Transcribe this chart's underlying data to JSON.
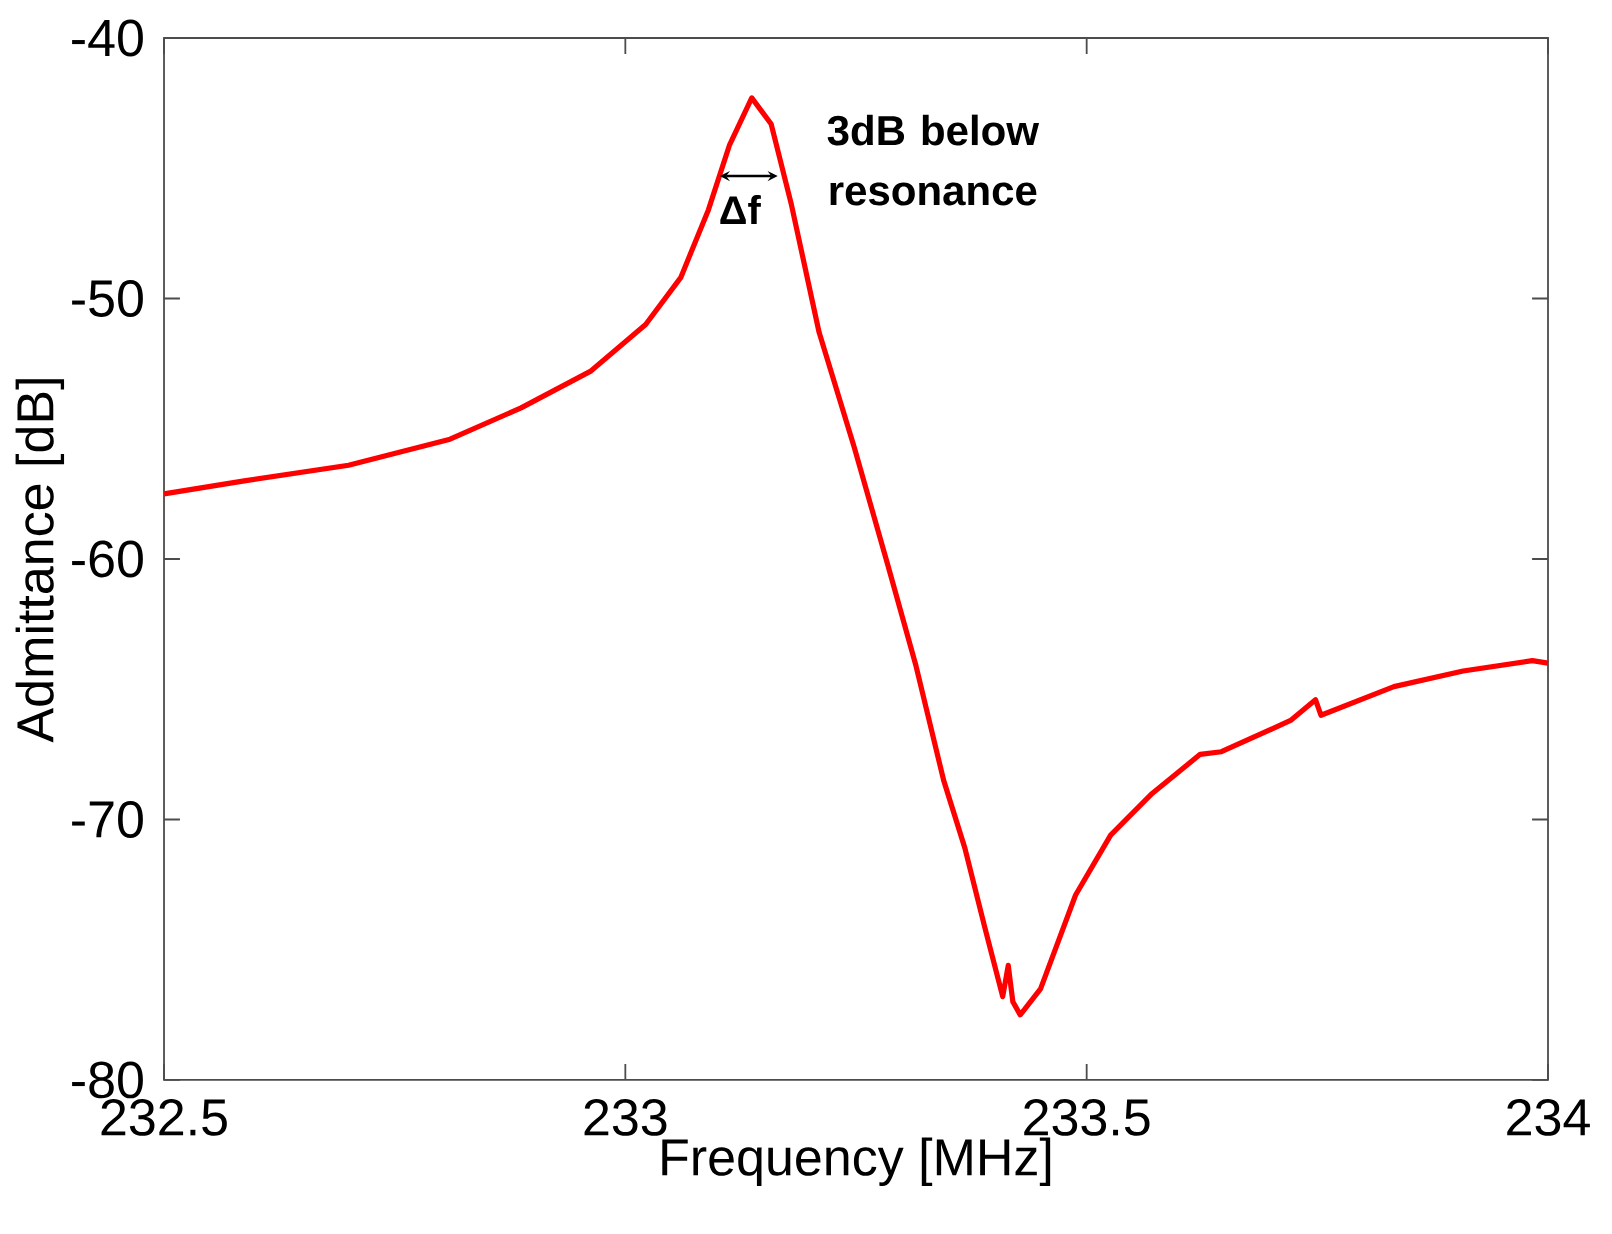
{
  "chart_data": {
    "type": "line",
    "xlabel": "Frequency [MHz]",
    "ylabel": "Admittance [dB]",
    "xlim": [
      232.5,
      234
    ],
    "ylim": [
      -80,
      -40
    ],
    "xticks": [
      232.5,
      233,
      233.5,
      234
    ],
    "yticks": [
      -80,
      -70,
      -60,
      -50,
      -40
    ],
    "grid": false,
    "marker": "none",
    "line_style": "solid",
    "annotations": [
      "Δf",
      "3dB below resonance"
    ],
    "series": [
      {
        "color": "#ff0000",
        "x": [
          232.5,
          232.587,
          232.7,
          232.81,
          232.887,
          232.962,
          233.022,
          233.06,
          233.09,
          233.113,
          233.137,
          233.158,
          233.18,
          233.21,
          233.248,
          233.285,
          233.315,
          233.345,
          233.368,
          233.39,
          233.409,
          233.415,
          233.42,
          233.428,
          233.45,
          233.488,
          233.526,
          233.571,
          233.623,
          233.646,
          233.721,
          233.748,
          233.754,
          233.833,
          233.908,
          233.983,
          234.0
        ],
        "values": [
          -57.5,
          -57.0,
          -56.4,
          -55.4,
          -54.2,
          -52.8,
          -51.0,
          -49.2,
          -46.6,
          -44.1,
          -42.3,
          -43.3,
          -46.4,
          -51.3,
          -55.7,
          -60.3,
          -64.1,
          -68.5,
          -71.1,
          -74.2,
          -76.8,
          -75.6,
          -77.0,
          -77.5,
          -76.5,
          -72.9,
          -70.6,
          -69.0,
          -67.5,
          -67.4,
          -66.2,
          -65.4,
          -66.0,
          -64.9,
          -64.3,
          -63.9,
          -64.0
        ]
      }
    ]
  }
}
